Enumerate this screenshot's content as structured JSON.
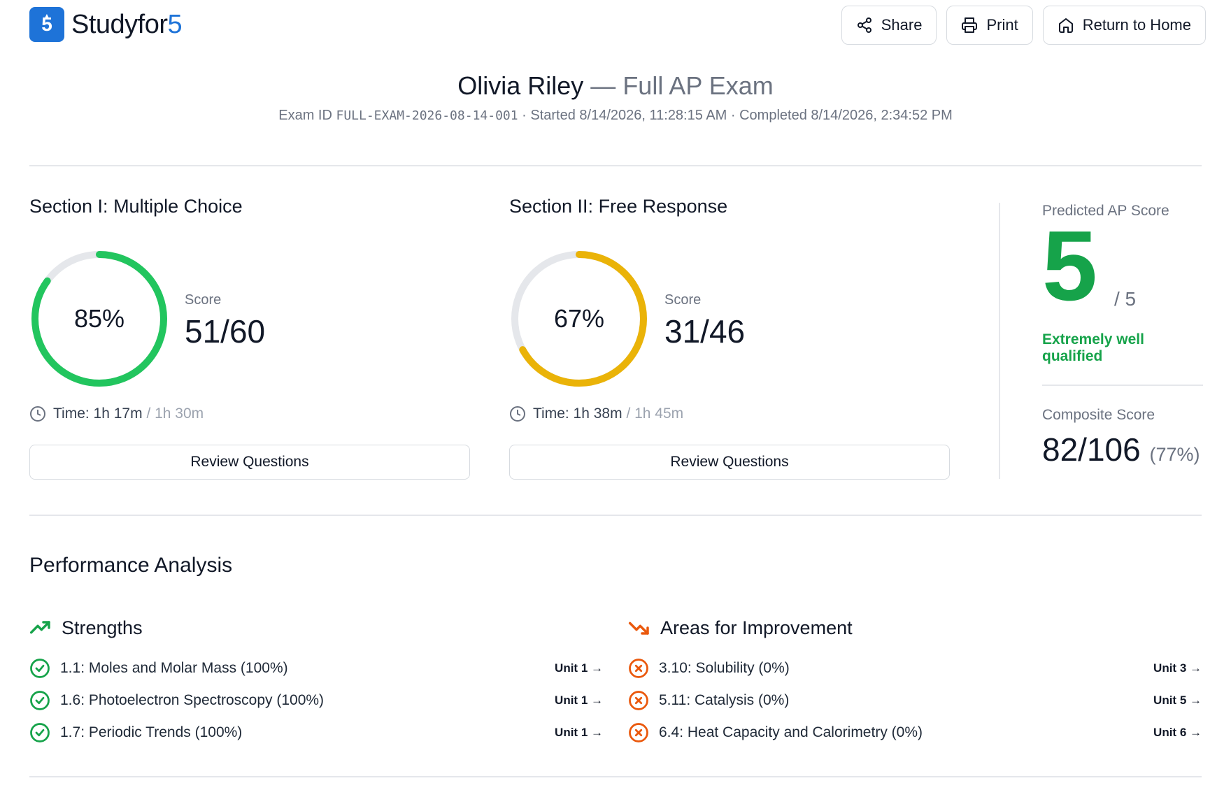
{
  "brand": {
    "logo_number": "5",
    "name_prefix": "Studyfor",
    "name_accent": "5"
  },
  "header": {
    "share_label": "Share",
    "print_label": "Print",
    "home_label": "Return to Home"
  },
  "exam": {
    "student_name": "Olivia Riley",
    "title_separator": " — ",
    "exam_name": "Full AP Exam",
    "id_prefix": "Exam ID ",
    "exam_id": "FULL-EXAM-2026-08-14-001",
    "started": " · Started 8/14/2026, 11:28:15 AM",
    "completed": " · Completed 8/14/2026, 2:34:52 PM"
  },
  "sections": [
    {
      "title": "Section I: Multiple Choice",
      "percent_label": "85%",
      "percent": 0.85,
      "ring_color": "#22c55e",
      "score_caption": "Score",
      "score": "51/60",
      "time_prefix": "Time: 1h 17m",
      "time_limit": " / 1h 30m",
      "review_label": "Review Questions"
    },
    {
      "title": "Section II: Free Response",
      "percent_label": "67%",
      "percent": 0.67,
      "ring_color": "#eab308",
      "score_caption": "Score",
      "score": "31/46",
      "time_prefix": "Time: 1h 38m",
      "time_limit": " / 1h 45m",
      "review_label": "Review Questions"
    }
  ],
  "predicted": {
    "caption": "Predicted AP Score",
    "score": "5",
    "out_of": "/ 5",
    "description": "Extremely well qualified",
    "composite_caption": "Composite Score",
    "composite": "82/106",
    "composite_pct": "(77%)"
  },
  "performance": {
    "title": "Performance Analysis",
    "strengths_title": "Strengths",
    "improve_title": "Areas for Improvement",
    "strengths": [
      {
        "label": "1.1: Moles and Molar Mass (100%)",
        "unit": "Unit 1 →"
      },
      {
        "label": "1.6: Photoelectron Spectroscopy (100%)",
        "unit": "Unit 1 →"
      },
      {
        "label": "1.7: Periodic Trends (100%)",
        "unit": "Unit 1 →"
      }
    ],
    "improvements": [
      {
        "label": "3.10: Solubility (0%)",
        "unit": "Unit 3 →"
      },
      {
        "label": "5.11: Catalysis (0%)",
        "unit": "Unit 5 →"
      },
      {
        "label": "6.4: Heat Capacity and Calorimetry (0%)",
        "unit": "Unit 6 →"
      }
    ]
  },
  "colors": {
    "brand": "#1e73d8",
    "success": "#16a34a",
    "warning": "#eab308",
    "danger": "#ea580c"
  }
}
